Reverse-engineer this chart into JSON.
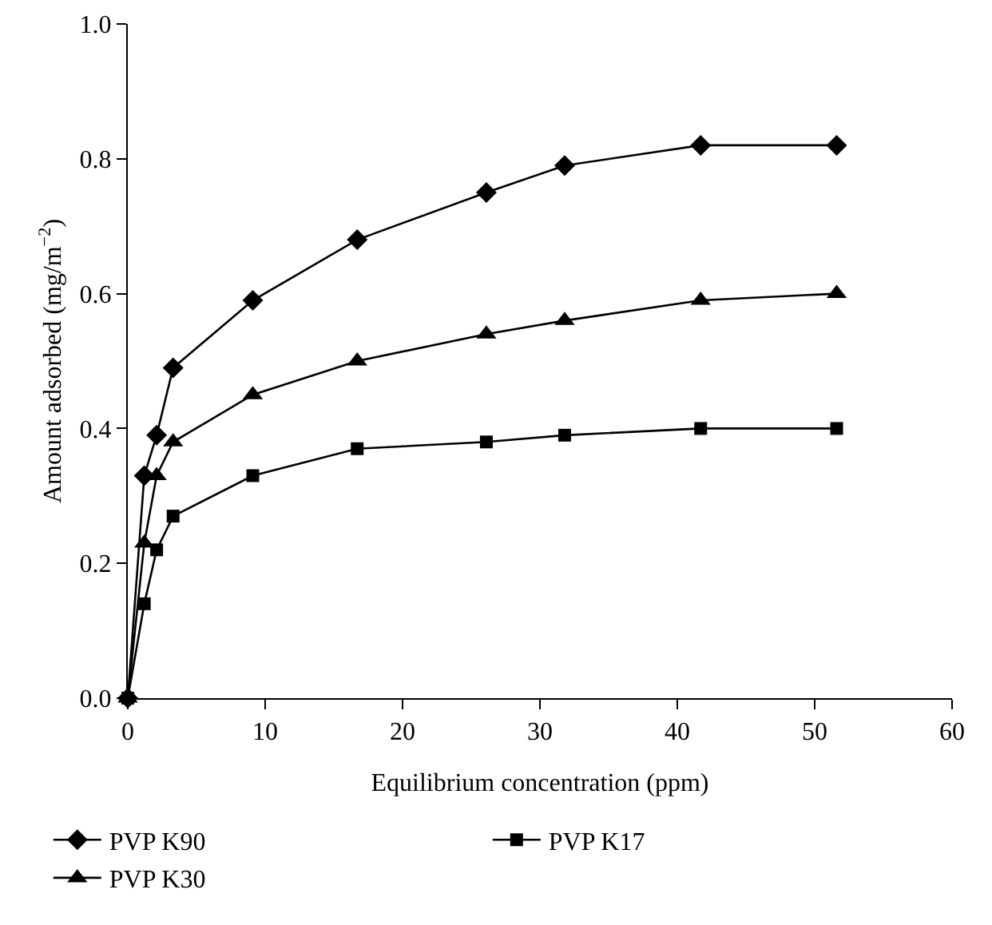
{
  "chart_data": {
    "type": "line",
    "xlabel": "Equilibrium concentration (ppm)",
    "ylabel": "Amount adsorbed (mg/m$^{−2}$)",
    "x": [
      0,
      1.2,
      2.1,
      3.3,
      9.1,
      16.7,
      26.1,
      31.8,
      41.7,
      51.6
    ],
    "series": [
      {
        "name": "PVP K90",
        "color": "#000000",
        "marker": "diamond",
        "values": [
          0,
          0.33,
          0.39,
          0.49,
          0.59,
          0.68,
          0.75,
          0.79,
          0.82,
          0.82
        ]
      },
      {
        "name": "PVP K17",
        "color": "#000000",
        "marker": "square",
        "values": [
          0,
          0.14,
          0.22,
          0.27,
          0.33,
          0.37,
          0.38,
          0.39,
          0.4,
          0.4
        ]
      },
      {
        "name": "PVP K30",
        "color": "#000000",
        "marker": "triangle",
        "values": [
          0,
          0.23,
          0.33,
          0.38,
          0.45,
          0.5,
          0.54,
          0.56,
          0.59,
          0.6
        ]
      }
    ],
    "xlim": [
      0,
      60
    ],
    "xticks": [
      0,
      10,
      20,
      30,
      40,
      50,
      60
    ],
    "ylim": [
      0,
      1
    ],
    "yticks": [
      {
        "value": 0,
        "label": "0.0"
      },
      0.2,
      0.4,
      0.6,
      0.8,
      {
        "value": 1,
        "label": "1.0"
      }
    ],
    "grid": false,
    "legend": "bottom",
    "line_style": "solid"
  }
}
